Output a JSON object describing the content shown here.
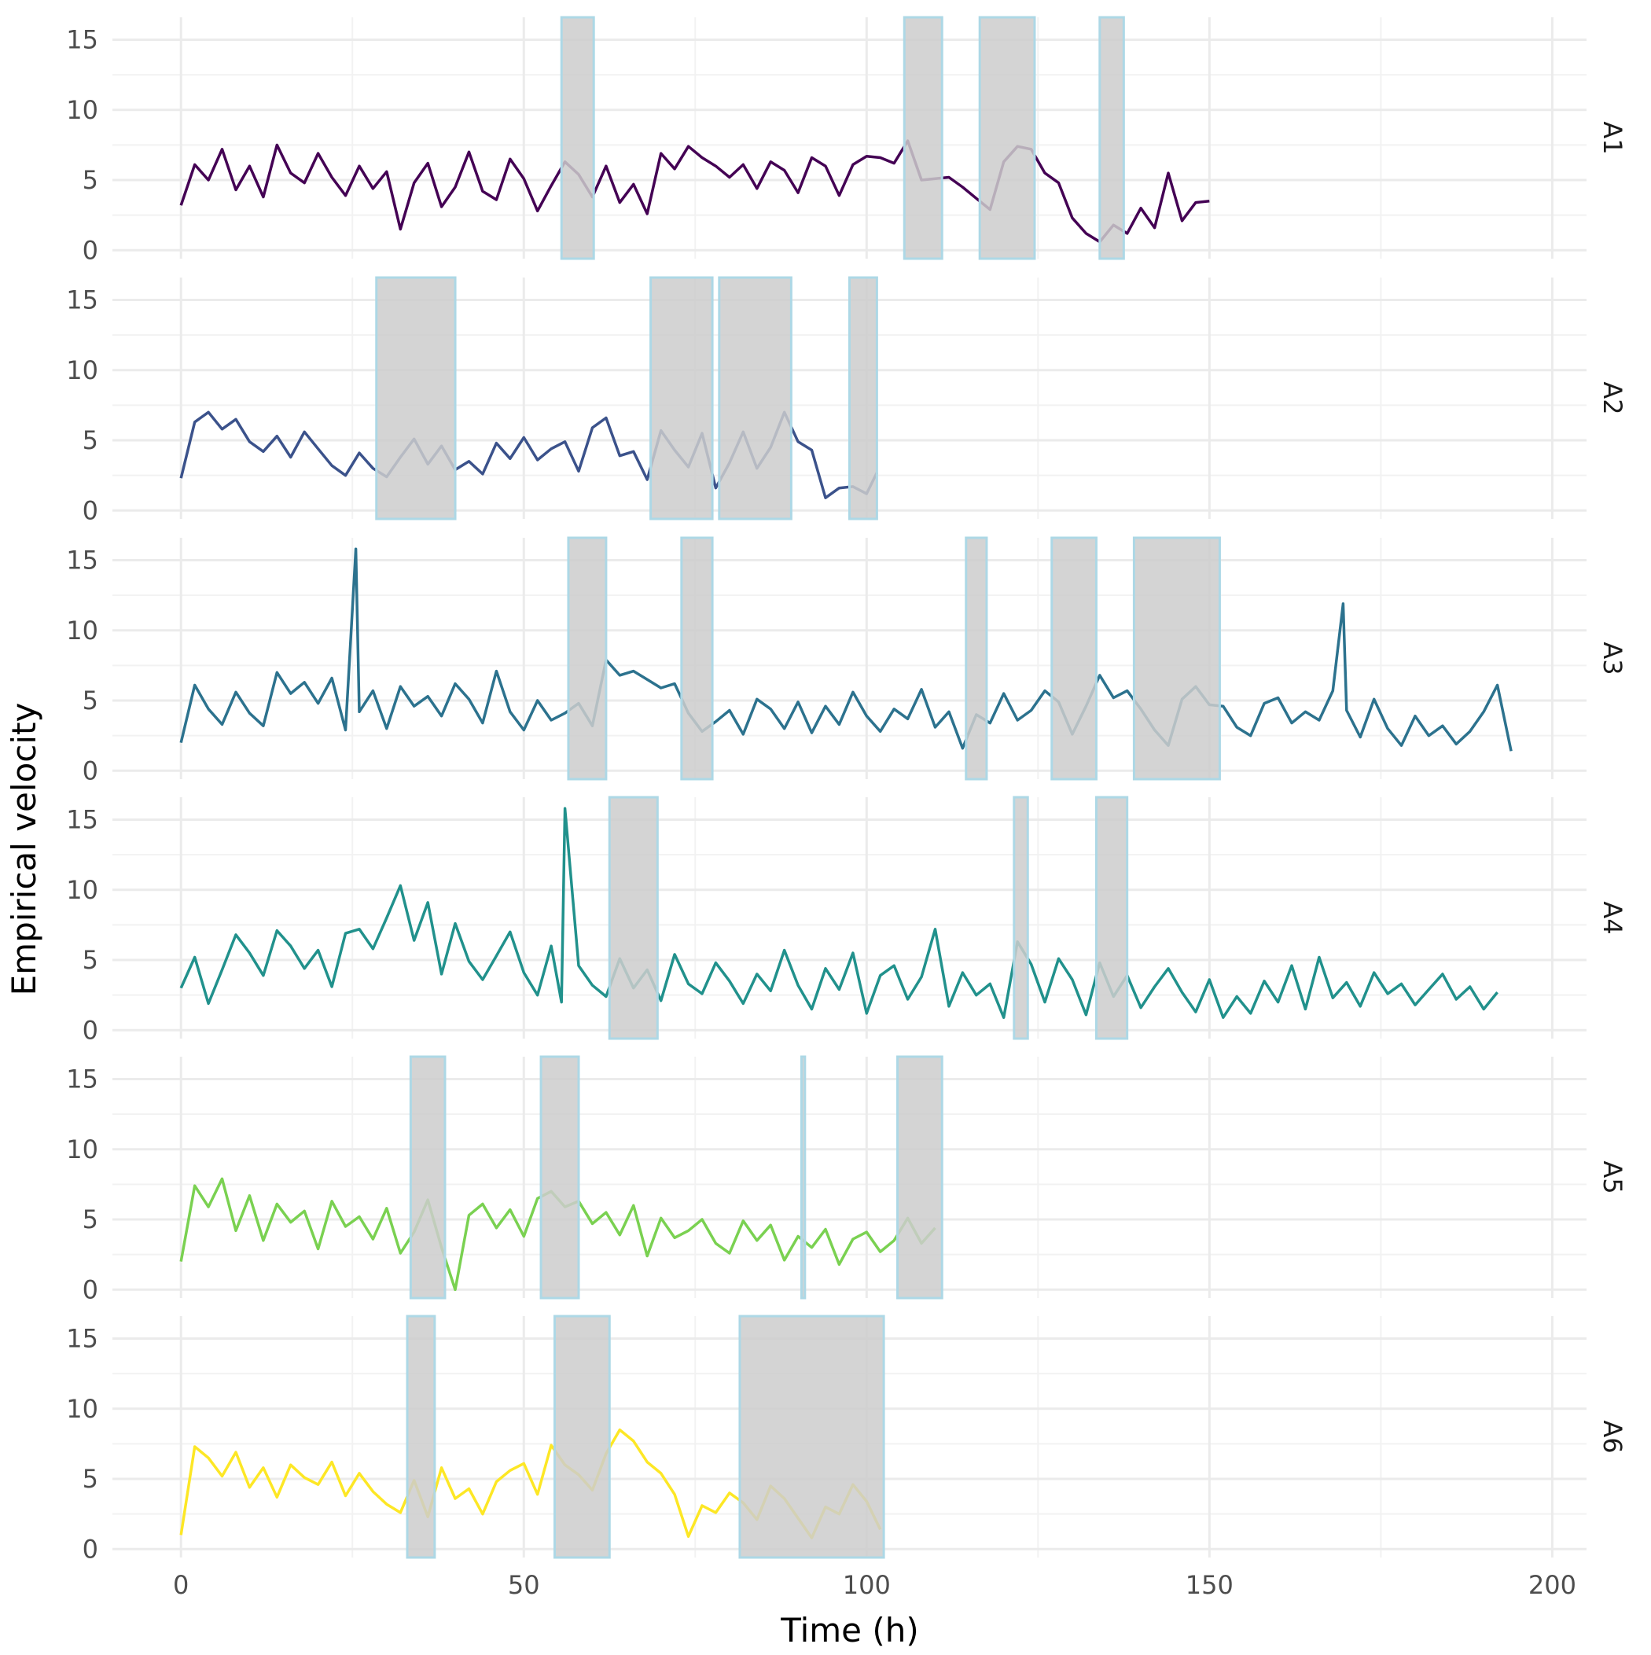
{
  "chart_data": {
    "type": "line",
    "xlabel": "Time (h)",
    "ylabel": "Empirical velocity",
    "xlim": [
      -10,
      205
    ],
    "ylim": [
      -0.6,
      16.6
    ],
    "x_ticks": [
      0,
      50,
      100,
      150,
      200
    ],
    "y_ticks": [
      0,
      5,
      10,
      15
    ],
    "grid": true,
    "legend": "none",
    "shade_fill": "#cccccc",
    "shade_stroke": "#add8e6",
    "panels": [
      {
        "label": "A1",
        "color": "#440154",
        "shaded_intervals": [
          [
            55.5,
            60.2
          ],
          [
            105.5,
            111.0
          ],
          [
            116.5,
            124.5
          ],
          [
            134.0,
            137.5
          ]
        ],
        "x": [
          0,
          2,
          4,
          6,
          8,
          10,
          12,
          14,
          16,
          18,
          20,
          22,
          24,
          26,
          28,
          30,
          32,
          34,
          36,
          38,
          40,
          42,
          44,
          46,
          48,
          50,
          52,
          54,
          56,
          58,
          60,
          62,
          64,
          66,
          68,
          70,
          72,
          74,
          76,
          78,
          80,
          82,
          84,
          86,
          88,
          90,
          92,
          94,
          96,
          98,
          100,
          102,
          104,
          106,
          108,
          110,
          112,
          114,
          116,
          118,
          120,
          122,
          124,
          126,
          128,
          130,
          132,
          134,
          136,
          138,
          140,
          142,
          144,
          146,
          148,
          150
        ],
        "y": [
          3.2,
          6.1,
          5.0,
          7.2,
          4.3,
          6.0,
          3.8,
          7.5,
          5.5,
          4.8,
          6.9,
          5.2,
          3.9,
          6.0,
          4.4,
          5.6,
          1.5,
          4.8,
          6.2,
          3.1,
          4.5,
          7.0,
          4.2,
          3.6,
          6.5,
          5.1,
          2.8,
          4.6,
          6.3,
          5.4,
          3.8,
          6.0,
          3.4,
          4.7,
          2.6,
          6.9,
          5.8,
          7.4,
          6.6,
          6.0,
          5.2,
          6.1,
          4.4,
          6.3,
          5.7,
          4.1,
          6.6,
          6.0,
          3.9,
          6.1,
          6.7,
          6.6,
          6.2,
          7.8,
          5.0,
          5.1,
          5.2,
          4.5,
          3.7,
          2.9,
          6.3,
          7.4,
          7.2,
          5.5,
          4.8,
          2.3,
          1.2,
          0.6,
          1.8,
          1.2,
          3.0,
          1.6,
          5.5,
          2.1,
          3.4,
          3.5
        ]
      },
      {
        "label": "A2",
        "color": "#3b528b",
        "shaded_intervals": [
          [
            28.5,
            40.0
          ],
          [
            68.5,
            77.5
          ],
          [
            78.5,
            89.0
          ],
          [
            97.5,
            101.5
          ]
        ],
        "x": [
          0,
          2,
          4,
          6,
          8,
          10,
          12,
          14,
          16,
          18,
          20,
          22,
          24,
          26,
          28,
          30,
          32,
          34,
          36,
          38,
          40,
          42,
          44,
          46,
          48,
          50,
          52,
          54,
          56,
          58,
          60,
          62,
          64,
          66,
          68,
          70,
          72,
          74,
          76,
          78,
          80,
          82,
          84,
          86,
          88,
          90,
          92,
          94,
          96,
          98,
          100,
          101.5
        ],
        "y": [
          2.3,
          6.3,
          7.0,
          5.8,
          6.5,
          4.9,
          4.2,
          5.3,
          3.8,
          5.6,
          4.4,
          3.2,
          2.5,
          4.1,
          3.0,
          2.4,
          3.8,
          5.1,
          3.3,
          4.6,
          2.9,
          3.5,
          2.6,
          4.8,
          3.7,
          5.2,
          3.6,
          4.4,
          4.9,
          2.8,
          5.9,
          6.6,
          3.9,
          4.2,
          2.2,
          5.7,
          4.3,
          3.1,
          5.5,
          1.6,
          3.4,
          5.6,
          3.0,
          4.5,
          7.0,
          4.9,
          4.3,
          0.9,
          1.6,
          1.7,
          1.2,
          2.7
        ]
      },
      {
        "label": "A3",
        "color": "#2c728e",
        "shaded_intervals": [
          [
            56.5,
            62.0
          ],
          [
            73.0,
            77.5
          ],
          [
            114.5,
            117.5
          ],
          [
            127.0,
            133.5
          ],
          [
            139.0,
            151.5
          ]
        ],
        "x": [
          0,
          2,
          4,
          6,
          8,
          10,
          12,
          14,
          16,
          18,
          20,
          22,
          24,
          25.5,
          26,
          28,
          30,
          32,
          34,
          36,
          38,
          40,
          42,
          44,
          46,
          48,
          50,
          52,
          54,
          56,
          58,
          60,
          62,
          64,
          66,
          68,
          70,
          72,
          74,
          76,
          78,
          80,
          82,
          84,
          86,
          88,
          90,
          92,
          94,
          96,
          98,
          100,
          102,
          104,
          106,
          108,
          110,
          112,
          114,
          116,
          118,
          120,
          122,
          124,
          126,
          128,
          130,
          132,
          134,
          136,
          138,
          140,
          142,
          144,
          146,
          148,
          150,
          152,
          154,
          156,
          158,
          160,
          162,
          164,
          166,
          168,
          169.5,
          170,
          172,
          174,
          176,
          178,
          180,
          182,
          184,
          186,
          188,
          190,
          192,
          194
        ],
        "y": [
          2.0,
          6.1,
          4.4,
          3.3,
          5.6,
          4.1,
          3.2,
          7.0,
          5.5,
          6.3,
          4.8,
          6.6,
          2.9,
          15.8,
          4.2,
          5.7,
          3.0,
          6.0,
          4.6,
          5.3,
          3.9,
          6.2,
          5.1,
          3.4,
          7.1,
          4.2,
          2.9,
          5.0,
          3.6,
          4.1,
          4.8,
          3.2,
          7.9,
          6.8,
          7.1,
          6.5,
          5.9,
          6.2,
          4.1,
          2.8,
          3.5,
          4.3,
          2.6,
          5.1,
          4.4,
          3.0,
          4.9,
          2.7,
          4.6,
          3.3,
          5.6,
          3.9,
          2.8,
          4.4,
          3.7,
          5.8,
          3.1,
          4.2,
          1.6,
          4.0,
          3.4,
          5.5,
          3.6,
          4.3,
          5.7,
          4.9,
          2.6,
          4.6,
          6.8,
          5.2,
          5.7,
          4.4,
          2.9,
          1.8,
          5.1,
          6.0,
          4.7,
          4.6,
          3.1,
          2.5,
          4.8,
          5.2,
          3.4,
          4.2,
          3.6,
          5.7,
          11.9,
          4.3,
          2.4,
          5.1,
          3.0,
          1.8,
          3.9,
          2.5,
          3.2,
          1.9,
          2.8,
          4.2,
          6.1,
          1.4
        ]
      },
      {
        "label": "A4",
        "color": "#21918c",
        "shaded_intervals": [
          [
            62.5,
            69.5
          ],
          [
            121.5,
            123.5
          ],
          [
            133.5,
            138.0
          ]
        ],
        "x": [
          0,
          2,
          4,
          6,
          8,
          10,
          12,
          14,
          16,
          18,
          20,
          22,
          24,
          26,
          28,
          30,
          32,
          34,
          36,
          38,
          40,
          42,
          44,
          46,
          48,
          50,
          52,
          54,
          55.5,
          56,
          58,
          60,
          62,
          64,
          66,
          68,
          70,
          72,
          74,
          76,
          78,
          80,
          82,
          84,
          86,
          88,
          90,
          92,
          94,
          96,
          98,
          100,
          102,
          104,
          106,
          108,
          110,
          112,
          114,
          116,
          118,
          120,
          122,
          124,
          126,
          128,
          130,
          132,
          134,
          136,
          138,
          140,
          142,
          144,
          146,
          148,
          150,
          152,
          154,
          156,
          158,
          160,
          162,
          164,
          166,
          168,
          170,
          172,
          174,
          176,
          178,
          180,
          182,
          184,
          186,
          188,
          190,
          192
        ],
        "y": [
          3.0,
          5.2,
          1.9,
          4.3,
          6.8,
          5.5,
          3.9,
          7.1,
          6.0,
          4.4,
          5.7,
          3.1,
          6.9,
          7.2,
          5.8,
          8.0,
          10.3,
          6.4,
          9.1,
          4.0,
          7.6,
          4.9,
          3.6,
          5.3,
          7.0,
          4.1,
          2.5,
          6.0,
          2.0,
          15.8,
          4.6,
          3.2,
          2.4,
          5.1,
          3.0,
          4.3,
          2.1,
          5.4,
          3.3,
          2.6,
          4.8,
          3.5,
          1.9,
          4.0,
          2.8,
          5.7,
          3.2,
          1.5,
          4.4,
          2.9,
          5.5,
          1.2,
          3.9,
          4.6,
          2.2,
          3.8,
          7.2,
          1.7,
          4.1,
          2.5,
          3.3,
          0.9,
          6.3,
          4.7,
          2.0,
          5.1,
          3.6,
          1.1,
          4.8,
          2.4,
          3.9,
          1.6,
          3.1,
          4.4,
          2.7,
          1.3,
          3.6,
          0.9,
          2.4,
          1.2,
          3.5,
          2.0,
          4.6,
          1.5,
          5.2,
          2.3,
          3.4,
          1.7,
          4.1,
          2.6,
          3.3,
          1.8,
          2.9,
          4.0,
          2.2,
          3.1,
          1.5,
          2.7
        ]
      },
      {
        "label": "A5",
        "color": "#7ad151",
        "shaded_intervals": [
          [
            33.5,
            38.5
          ],
          [
            52.5,
            58.0
          ],
          [
            90.5,
            91.0
          ],
          [
            104.5,
            111.0
          ]
        ],
        "x": [
          0,
          2,
          4,
          6,
          8,
          10,
          12,
          14,
          16,
          18,
          20,
          22,
          24,
          26,
          28,
          30,
          32,
          34,
          36,
          38,
          40,
          42,
          44,
          46,
          48,
          50,
          52,
          54,
          56,
          58,
          60,
          62,
          64,
          66,
          68,
          70,
          72,
          74,
          76,
          78,
          80,
          82,
          84,
          86,
          88,
          90,
          92,
          94,
          96,
          98,
          100,
          102,
          104,
          106,
          108,
          110
        ],
        "y": [
          2.0,
          7.4,
          5.9,
          7.9,
          4.2,
          6.7,
          3.5,
          6.1,
          4.8,
          5.6,
          2.9,
          6.3,
          4.5,
          5.2,
          3.6,
          5.8,
          2.6,
          4.1,
          6.4,
          3.0,
          0.0,
          5.3,
          6.1,
          4.4,
          5.7,
          3.8,
          6.5,
          7.0,
          5.9,
          6.3,
          4.7,
          5.5,
          3.9,
          6.0,
          2.4,
          5.1,
          3.7,
          4.2,
          5.0,
          3.3,
          2.6,
          4.9,
          3.5,
          4.6,
          2.1,
          3.8,
          3.0,
          4.3,
          1.8,
          3.6,
          4.1,
          2.7,
          3.5,
          5.1,
          3.3,
          4.4
        ]
      },
      {
        "label": "A6",
        "color": "#fde725",
        "shaded_intervals": [
          [
            33.0,
            37.0
          ],
          [
            54.5,
            62.5
          ],
          [
            81.5,
            102.5
          ]
        ],
        "x": [
          0,
          2,
          4,
          6,
          8,
          10,
          12,
          14,
          16,
          18,
          20,
          22,
          24,
          26,
          28,
          30,
          32,
          34,
          36,
          38,
          40,
          42,
          44,
          46,
          48,
          50,
          52,
          54,
          56,
          58,
          60,
          62,
          64,
          66,
          68,
          70,
          72,
          74,
          76,
          78,
          80,
          82,
          84,
          86,
          88,
          90,
          92,
          94,
          96,
          98,
          100,
          102
        ],
        "y": [
          1.0,
          7.3,
          6.5,
          5.2,
          6.9,
          4.4,
          5.8,
          3.7,
          6.0,
          5.1,
          4.6,
          6.2,
          3.8,
          5.4,
          4.1,
          3.2,
          2.6,
          4.9,
          2.3,
          5.8,
          3.6,
          4.3,
          2.5,
          4.8,
          5.6,
          6.1,
          3.9,
          7.4,
          6.0,
          5.3,
          4.2,
          6.8,
          8.5,
          7.7,
          6.2,
          5.4,
          3.9,
          0.9,
          3.1,
          2.6,
          4.0,
          3.3,
          2.1,
          4.5,
          3.6,
          2.2,
          0.8,
          3.0,
          2.5,
          4.6,
          3.4,
          1.4
        ]
      }
    ]
  }
}
